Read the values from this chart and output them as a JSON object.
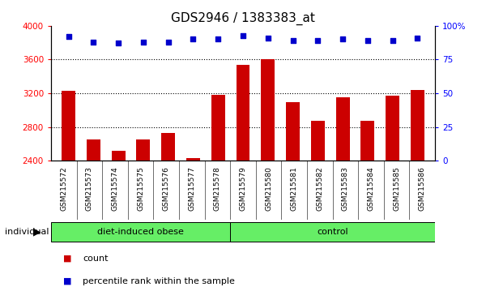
{
  "title": "GDS2946 / 1383383_at",
  "samples": [
    "GSM215572",
    "GSM215573",
    "GSM215574",
    "GSM215575",
    "GSM215576",
    "GSM215577",
    "GSM215578",
    "GSM215579",
    "GSM215580",
    "GSM215581",
    "GSM215582",
    "GSM215583",
    "GSM215584",
    "GSM215585",
    "GSM215586"
  ],
  "bar_values": [
    3230,
    2650,
    2520,
    2650,
    2730,
    2430,
    3180,
    3540,
    3600,
    3090,
    2870,
    3150,
    2870,
    3170,
    3240
  ],
  "percentile_values": [
    92,
    88,
    87,
    88,
    88,
    90,
    90,
    93,
    91,
    89,
    89,
    90,
    89,
    89,
    91
  ],
  "bar_color": "#cc0000",
  "dot_color": "#0000cc",
  "ylim_left": [
    2400,
    4000
  ],
  "ylim_right": [
    0,
    100
  ],
  "yticks_left": [
    2400,
    2800,
    3200,
    3600,
    4000
  ],
  "yticks_right": [
    0,
    25,
    50,
    75,
    100
  ],
  "grid_lines": [
    2800,
    3200,
    3600
  ],
  "group1_label": "diet-induced obese",
  "group1_samples": 7,
  "group2_label": "control",
  "group2_samples": 8,
  "individual_label": "individual",
  "legend_count": "count",
  "legend_percentile": "percentile rank within the sample",
  "group_bar_color": "#66ee66",
  "sample_bg_color": "#d0d0d0",
  "title_fontsize": 11,
  "tick_fontsize": 7.5
}
